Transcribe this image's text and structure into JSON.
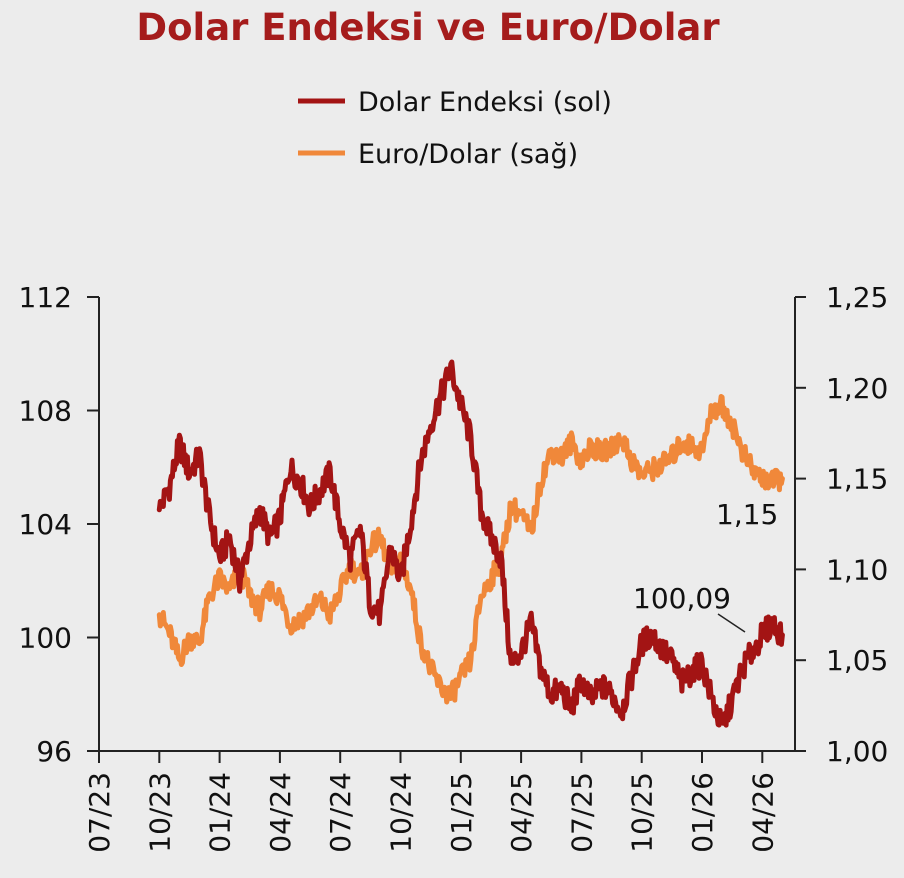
{
  "chart_data": {
    "type": "line",
    "title": "Dolar Endeksi ve Euro/Dolar",
    "legend": [
      "Dolar Endeksi (sol)",
      "Euro/Dolar (sağ)"
    ],
    "colors": {
      "dxy": "#a31414",
      "eurusd": "#f0883a"
    },
    "x_ticks": [
      "07/23",
      "10/23",
      "01/24",
      "04/24",
      "07/24",
      "10/24",
      "01/25",
      "04/25",
      "07/25",
      "10/25",
      "01/26",
      "04/26"
    ],
    "y_left": {
      "ylim": [
        96,
        112
      ],
      "ticks": [
        "96",
        "100",
        "104",
        "108",
        "112"
      ]
    },
    "y_right": {
      "ylim": [
        1.0,
        1.25
      ],
      "ticks": [
        "1,00",
        "1,05",
        "1,10",
        "1,15",
        "1,20",
        "1,25"
      ]
    },
    "x_start_month": 0.7,
    "series": [
      {
        "name": "Dolar Endeksi (sol)",
        "axis": "left",
        "x_month": [
          3.0,
          3.5,
          4.0,
          4.5,
          5.0,
          5.5,
          6.0,
          6.5,
          7.0,
          7.5,
          8.0,
          8.5,
          9.0,
          9.5,
          10.0,
          10.5,
          11.0,
          11.5,
          12.0,
          12.5,
          13.0,
          13.5,
          14.0,
          14.5,
          15.0,
          15.5,
          16.0,
          16.5,
          17.0,
          17.5,
          18.0,
          18.5,
          19.0,
          19.5,
          20.0,
          20.5,
          21.0,
          21.5,
          22.0,
          22.5,
          23.0,
          23.5,
          24.0,
          24.5,
          25.0,
          25.5,
          26.0,
          26.5,
          27.0,
          27.5,
          28.0,
          28.5,
          29.0,
          29.5,
          30.0,
          30.5,
          31.0,
          31.5,
          32.0,
          32.5,
          33.0,
          33.5,
          34.0
        ],
        "values": [
          104.5,
          105.3,
          106.8,
          105.8,
          106.4,
          104.2,
          102.8,
          103.5,
          102.0,
          103.4,
          104.5,
          103.5,
          104.2,
          106.0,
          105.5,
          104.6,
          105.2,
          105.8,
          104.0,
          102.8,
          103.8,
          101.2,
          100.8,
          103.2,
          102.0,
          104.0,
          106.2,
          107.5,
          108.5,
          109.5,
          108.2,
          107.0,
          104.5,
          103.5,
          102.8,
          99.0,
          99.5,
          100.5,
          98.8,
          98.0,
          98.2,
          97.5,
          98.5,
          97.8,
          98.3,
          98.0,
          97.4,
          98.6,
          99.8,
          100.1,
          99.6,
          99.2,
          98.4,
          98.8,
          99.1,
          97.8,
          96.8,
          97.8,
          98.9,
          99.5,
          100.09,
          100.5,
          100.09
        ]
      },
      {
        "name": "Euro/Dolar (sağ)",
        "axis": "right",
        "x_month": [
          3.0,
          3.5,
          4.0,
          4.5,
          5.0,
          5.5,
          6.0,
          6.5,
          7.0,
          7.5,
          8.0,
          8.5,
          9.0,
          9.5,
          10.0,
          10.5,
          11.0,
          11.5,
          12.0,
          12.5,
          13.0,
          13.5,
          14.0,
          14.5,
          15.0,
          15.5,
          16.0,
          16.5,
          17.0,
          17.5,
          18.0,
          18.5,
          19.0,
          19.5,
          20.0,
          20.5,
          21.0,
          21.5,
          22.0,
          22.5,
          23.0,
          23.5,
          24.0,
          24.5,
          25.0,
          25.5,
          26.0,
          26.5,
          27.0,
          27.5,
          28.0,
          28.5,
          29.0,
          29.5,
          30.0,
          30.5,
          31.0,
          31.5,
          32.0,
          32.5,
          33.0,
          33.5,
          34.0
        ],
        "values": [
          1.075,
          1.065,
          1.05,
          1.062,
          1.06,
          1.085,
          1.095,
          1.088,
          1.1,
          1.086,
          1.078,
          1.089,
          1.085,
          1.07,
          1.072,
          1.078,
          1.083,
          1.075,
          1.088,
          1.102,
          1.095,
          1.113,
          1.117,
          1.1,
          1.105,
          1.09,
          1.06,
          1.045,
          1.035,
          1.03,
          1.04,
          1.05,
          1.085,
          1.095,
          1.105,
          1.135,
          1.13,
          1.12,
          1.15,
          1.165,
          1.162,
          1.17,
          1.16,
          1.168,
          1.164,
          1.167,
          1.173,
          1.16,
          1.152,
          1.155,
          1.158,
          1.162,
          1.17,
          1.168,
          1.165,
          1.188,
          1.19,
          1.18,
          1.165,
          1.155,
          1.15,
          1.148,
          1.15
        ]
      }
    ],
    "annotations": [
      "100,09",
      "1,15"
    ]
  }
}
